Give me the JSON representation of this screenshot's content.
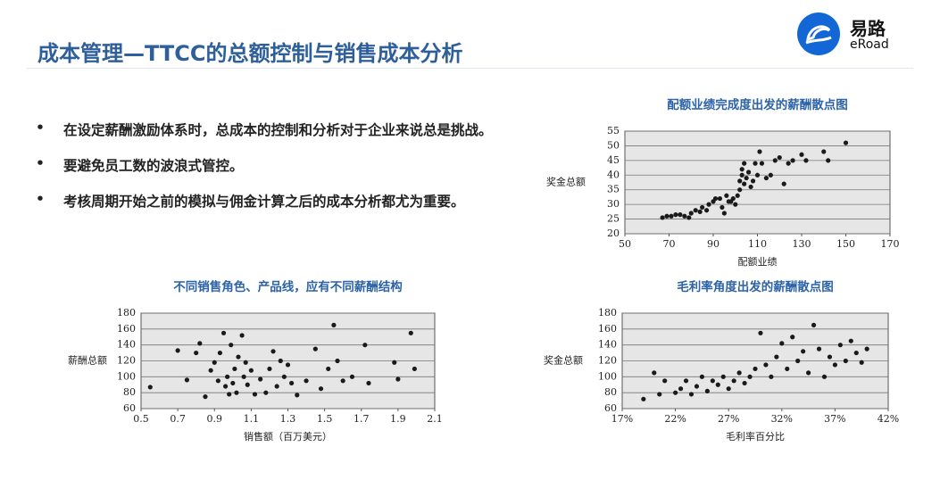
{
  "header": {
    "title": "成本管理—TTCC的总额控制与销售成本分析",
    "logo_name": "易路",
    "logo_sub": "eRoad"
  },
  "bullets": [
    "在设定薪酬激励体系时，总成本的控制和分析对于企业来说总是挑战。",
    "要避免员工数的波浪式管控。",
    "考核周期开始之前的模拟与佣金计算之后的成本分析都尤为重要。"
  ],
  "chart_data": [
    {
      "type": "scatter",
      "title": "配额业绩完成度出发的薪酬散点图",
      "x_label": "配额业绩",
      "y_label": "奖金总额",
      "color": "#1a1a1a",
      "grid": true,
      "xlim": [
        50,
        170
      ],
      "xticks": [
        50,
        70,
        90,
        110,
        130,
        150,
        170
      ],
      "ylim": [
        20,
        55
      ],
      "yticks": [
        20,
        25,
        30,
        35,
        40,
        45,
        50,
        55
      ],
      "x": [
        67,
        69,
        71,
        73,
        75,
        77,
        79,
        80,
        82,
        84,
        85,
        87,
        88,
        90,
        91,
        93,
        94,
        95,
        96,
        97,
        98,
        99,
        100,
        101,
        102,
        102,
        103,
        103,
        104,
        104,
        105,
        106,
        107,
        108,
        109,
        110,
        111,
        112,
        114,
        116,
        118,
        120,
        122,
        124,
        126,
        130,
        132,
        140,
        142,
        150
      ],
      "values": [
        25.5,
        26,
        26,
        26.5,
        26.5,
        26,
        25.5,
        27,
        28,
        27.5,
        29,
        28,
        30,
        31,
        32,
        32,
        29,
        27,
        33,
        31,
        31,
        32,
        30,
        33,
        35,
        38,
        40,
        42,
        44,
        37,
        39,
        41,
        36,
        38,
        44,
        40,
        48,
        44,
        39,
        40,
        45,
        46,
        37,
        44,
        45,
        47,
        45,
        48,
        45,
        51
      ]
    },
    {
      "type": "scatter",
      "title": "不同销售角色、产品线，应有不同薪酬结构",
      "x_label": "销售额（百万美元）",
      "y_label": "薪酬总额",
      "color": "#1a1a1a",
      "grid": true,
      "xlim": [
        0.5,
        2.1
      ],
      "xticks": [
        0.5,
        0.7,
        0.9,
        1.1,
        1.3,
        1.5,
        1.7,
        1.9,
        2.1
      ],
      "ylim": [
        60,
        180
      ],
      "yticks": [
        60,
        80,
        100,
        120,
        140,
        160,
        180
      ],
      "x": [
        0.55,
        0.7,
        0.75,
        0.8,
        0.82,
        0.85,
        0.88,
        0.9,
        0.92,
        0.93,
        0.95,
        0.96,
        0.97,
        0.98,
        0.99,
        1.0,
        1.01,
        1.02,
        1.03,
        1.05,
        1.06,
        1.07,
        1.08,
        1.1,
        1.12,
        1.15,
        1.18,
        1.2,
        1.22,
        1.24,
        1.26,
        1.28,
        1.3,
        1.32,
        1.35,
        1.4,
        1.45,
        1.48,
        1.52,
        1.55,
        1.57,
        1.6,
        1.65,
        1.72,
        1.74,
        1.88,
        1.9,
        1.97,
        1.99
      ],
      "values": [
        87,
        133,
        96,
        130,
        142,
        75,
        108,
        118,
        95,
        130,
        155,
        88,
        100,
        78,
        140,
        92,
        110,
        80,
        125,
        152,
        100,
        118,
        90,
        108,
        78,
        97,
        80,
        110,
        132,
        88,
        120,
        100,
        115,
        92,
        77,
        95,
        135,
        85,
        110,
        165,
        120,
        95,
        100,
        140,
        92,
        118,
        97,
        155,
        110
      ]
    },
    {
      "type": "scatter",
      "title": "毛利率角度出发的薪酬散点图",
      "x_label": "毛利率百分比",
      "y_label": "奖金总额",
      "color": "#1a1a1a",
      "grid": true,
      "xlim": [
        17,
        42
      ],
      "xticks": [
        {
          "value": 17,
          "label": "17%"
        },
        {
          "value": 22,
          "label": "22%"
        },
        {
          "value": 27,
          "label": "27%"
        },
        {
          "value": 32,
          "label": "32%"
        },
        {
          "value": 37,
          "label": "37%"
        },
        {
          "value": 42,
          "label": "42%"
        }
      ],
      "ylim": [
        60,
        180
      ],
      "yticks": [
        60,
        80,
        100,
        120,
        140,
        160,
        180
      ],
      "x": [
        19,
        20,
        20.5,
        21,
        22,
        22.5,
        23,
        23.5,
        24,
        24.5,
        25,
        25.5,
        26,
        26.5,
        27,
        27.5,
        28,
        28.5,
        29,
        29.5,
        30,
        30.5,
        31,
        31.5,
        32,
        32.5,
        33,
        33.5,
        34,
        34.5,
        35,
        35.5,
        36,
        36.5,
        37,
        37.5,
        38,
        38.5,
        39,
        39.5,
        40
      ],
      "values": [
        72,
        105,
        78,
        95,
        80,
        85,
        95,
        78,
        88,
        100,
        82,
        95,
        90,
        100,
        85,
        95,
        105,
        92,
        100,
        110,
        155,
        115,
        100,
        125,
        142,
        110,
        150,
        120,
        132,
        105,
        165,
        135,
        100,
        125,
        115,
        140,
        120,
        145,
        130,
        118,
        135
      ]
    }
  ]
}
